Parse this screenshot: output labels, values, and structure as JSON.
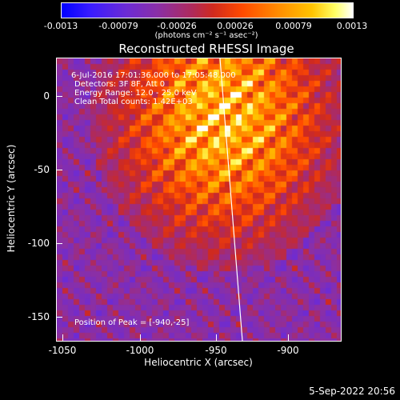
{
  "colorbar": {
    "ticks": [
      "-0.0013",
      "-0.00079",
      "-0.00026",
      "0.00026",
      "0.00079",
      "0.0013"
    ],
    "units": "(photons cm⁻² s⁻¹ asec⁻²)"
  },
  "title": "Reconstructed RHESSI Image",
  "annotations": {
    "time": "6-Jul-2016 17:01:36.000 to 17:05:48.000",
    "detectors": "Detectors: 3F 8F, Att 0",
    "energy": "Energy Range: 12.0 - 25.0 keV",
    "clean": "Clean     Total counts: 1.42E+03",
    "peak": "Position of Peak = [-940,-25]"
  },
  "axes": {
    "xlabel": "Heliocentric X (arcsec)",
    "ylabel": "Heliocentric Y (arcsec)",
    "xticks": [
      "-1050",
      "-1000",
      "-950",
      "-900"
    ],
    "yticks": [
      "0",
      "-50",
      "-100",
      "-150"
    ]
  },
  "timestamp": "5-Sep-2022 20:56"
}
